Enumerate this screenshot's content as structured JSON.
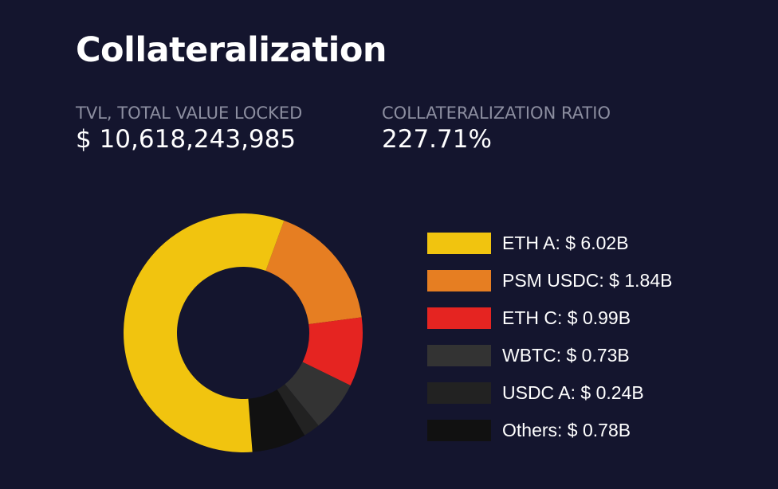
{
  "header": {
    "title": "Collateralization"
  },
  "stats": {
    "tvl": {
      "label": "TVL, TOTAL VALUE LOCKED",
      "value": "$ 10,618,243,985"
    },
    "ratio": {
      "label": "COLLATERALIZATION RATIO",
      "value": "227.71%"
    }
  },
  "chart_data": {
    "type": "pie",
    "title": "",
    "donut": true,
    "legend_position": "right",
    "unit": "$B",
    "categories": [
      "ETH A",
      "PSM USDC",
      "ETH C",
      "WBTC",
      "USDC A",
      "Others"
    ],
    "values": [
      6.02,
      1.84,
      0.99,
      0.73,
      0.24,
      0.78
    ],
    "legend_labels": [
      "ETH A: $ 6.02B",
      "PSM USDC: $ 1.84B",
      "ETH C: $ 0.99B",
      "WBTC: $ 0.73B",
      "USDC A: $ 0.24B",
      "Others: $ 0.78B"
    ],
    "colors": [
      "#f1c40f",
      "#e67e22",
      "#e52421",
      "#333333",
      "#222222",
      "#111111"
    ],
    "start_category": "PSM USDC",
    "direction": "clockwise"
  }
}
